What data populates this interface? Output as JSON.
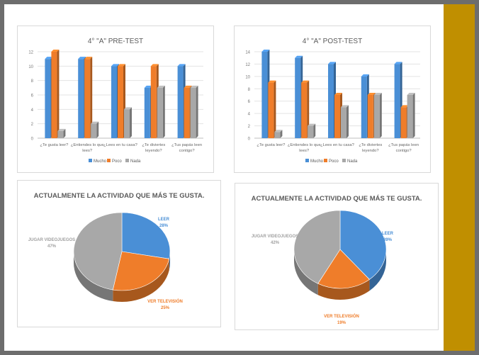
{
  "colors": {
    "mucho": "#4a8fd6",
    "poco": "#ef7d2a",
    "nada": "#a8a8a8",
    "accent_bar": "#c08f00"
  },
  "chart_data": [
    {
      "type": "bar",
      "title": "4° \"A\" PRE-TEST",
      "categories": [
        [
          "¿Te gusta leer?"
        ],
        [
          "¿Entiendes lo que",
          "lees?"
        ],
        [
          "¿Lees en tu casa?"
        ],
        [
          "¿Te diviertes",
          "leyendo?"
        ],
        [
          "¿Tus papás leen",
          "contigo?"
        ]
      ],
      "series": [
        {
          "name": "Mucho",
          "values": [
            11,
            11,
            10,
            7,
            10
          ]
        },
        {
          "name": "Poco",
          "values": [
            12,
            11,
            10,
            10,
            7
          ]
        },
        {
          "name": "Nada",
          "values": [
            1,
            2,
            4,
            7,
            7
          ]
        }
      ],
      "ylim": [
        0,
        12
      ],
      "yticks": [
        0,
        2,
        4,
        6,
        8,
        10,
        12
      ],
      "grid": true,
      "legend": "bottom"
    },
    {
      "type": "bar",
      "title": "4° \"A\" POST-TEST",
      "categories": [
        [
          "¿Te gusta leer?"
        ],
        [
          "¿Entiendes lo que",
          "lees?"
        ],
        [
          "¿Lees en tu casa?"
        ],
        [
          "¿Te diviertes",
          "leyendo?"
        ],
        [
          "¿Tus papás leen",
          "contigo?"
        ]
      ],
      "series": [
        {
          "name": "Mucho",
          "values": [
            14,
            13,
            12,
            10,
            12
          ]
        },
        {
          "name": "Poco",
          "values": [
            9,
            9,
            7,
            7,
            5
          ]
        },
        {
          "name": "Nada",
          "values": [
            1,
            2,
            5,
            7,
            7
          ]
        }
      ],
      "ylim": [
        0,
        14
      ],
      "yticks": [
        0,
        2,
        4,
        6,
        8,
        10,
        12,
        14
      ],
      "grid": true,
      "legend": "bottom"
    },
    {
      "type": "pie",
      "title": "ACTUALMENTE LA ACTIVIDAD QUE MÁS TE GUSTA.",
      "slices": [
        {
          "label": "LEER",
          "value": 28,
          "value_label": "28%"
        },
        {
          "label": "VER TELEVISIÓN",
          "value": 25,
          "value_label": "25%"
        },
        {
          "label": "JUGAR VIDEOJUEGOS",
          "value": 47,
          "value_label": "47%"
        }
      ]
    },
    {
      "type": "pie",
      "title": "ACTUALMENTE LA ACTIVIDAD QUE MÁS TE GUSTA.",
      "slices": [
        {
          "label": "LEER",
          "value": 39,
          "value_label": "39%"
        },
        {
          "label": "VER TELEVISIÓN",
          "value": 19,
          "value_label": "19%"
        },
        {
          "label": "JUGAR VIDEOJUEGOS",
          "value": 42,
          "value_label": "42%"
        }
      ]
    }
  ]
}
